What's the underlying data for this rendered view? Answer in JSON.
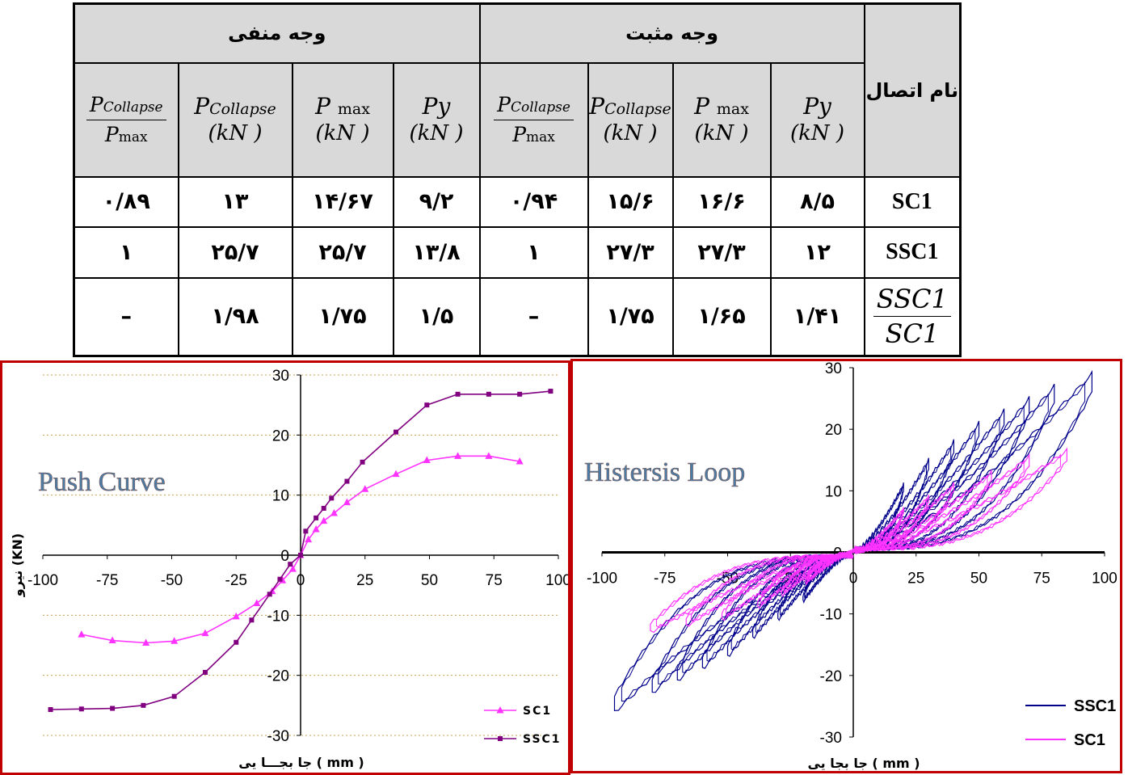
{
  "table": {
    "group_negative": "وجه منفی",
    "group_positive": "وجه مثبت",
    "name_header": "نام اتصال",
    "col_headers": {
      "p": "P",
      "sub_collapse": "Collapse",
      "sub_max": "max",
      "py": "Py",
      "unit": "(kN )"
    },
    "rows": [
      {
        "name": "SC1",
        "neg": [
          "۰/۸۹",
          "۱۳",
          "۱۴/۶۷",
          "۹/۲"
        ],
        "pos": [
          "۰/۹۴",
          "۱۵/۶",
          "۱۶/۶",
          "۸/۵"
        ]
      },
      {
        "name": "SSC1",
        "neg": [
          "۱",
          "۲۵/۷",
          "۲۵/۷",
          "۱۳/۸"
        ],
        "pos": [
          "۱",
          "۲۷/۳",
          "۲۷/۳",
          "۱۲"
        ]
      },
      {
        "name_num": "SSC1",
        "name_den": "SC1",
        "neg": [
          "–",
          "۱/۹۸",
          "۱/۷۵",
          "۱/۵"
        ],
        "pos": [
          "–",
          "۱/۷۵",
          "۱/۶۵",
          "۱/۴۱"
        ]
      }
    ]
  },
  "colors": {
    "sc1_push": "#ff33ff",
    "ssc1_push": "#800080",
    "ssc1_loop": "#00008b",
    "sc1_loop": "#ff33ff",
    "frame": "#c00000",
    "grid": "#c8a050"
  },
  "chart_data": [
    {
      "type": "line",
      "title": "Push Curve",
      "xlabel": "جا بجـــا یی ( mm )",
      "ylabel": "نیرو (KN)",
      "xlim": [
        -100,
        100
      ],
      "ylim": [
        -30,
        30
      ],
      "x_ticks": [
        -100,
        -75,
        -50,
        -25,
        0,
        25,
        50,
        75,
        100
      ],
      "y_ticks": [
        30,
        20,
        10,
        0,
        -10,
        -20,
        -30
      ],
      "grid": "horizontal dotted",
      "legend_position": "bottom-right",
      "series": [
        {
          "name": "SC1",
          "marker": "triangle",
          "points": [
            [
              -85,
              -13.2
            ],
            [
              -73,
              -14.2
            ],
            [
              -60,
              -14.6
            ],
            [
              -49,
              -14.3
            ],
            [
              -37,
              -13
            ],
            [
              -25,
              -10.2
            ],
            [
              -17,
              -8
            ],
            [
              -11,
              -6
            ],
            [
              -7,
              -4.2
            ],
            [
              -3,
              -2.3
            ],
            [
              0,
              0
            ],
            [
              3,
              2.6
            ],
            [
              6,
              4.3
            ],
            [
              9,
              5.7
            ],
            [
              13,
              7
            ],
            [
              18,
              8.8
            ],
            [
              25,
              11
            ],
            [
              37,
              13.5
            ],
            [
              49,
              15.8
            ],
            [
              61,
              16.5
            ],
            [
              73,
              16.5
            ],
            [
              85,
              15.6
            ]
          ]
        },
        {
          "name": "SSC1",
          "marker": "square",
          "points": [
            [
              -97,
              -25.7
            ],
            [
              -85,
              -25.6
            ],
            [
              -73,
              -25.5
            ],
            [
              -61,
              -25
            ],
            [
              -49,
              -23.5
            ],
            [
              -37,
              -19.5
            ],
            [
              -25,
              -14.5
            ],
            [
              -19,
              -10.8
            ],
            [
              -12,
              -6.5
            ],
            [
              -8,
              -4
            ],
            [
              -4,
              -1.5
            ],
            [
              0,
              0
            ],
            [
              2,
              4
            ],
            [
              6,
              6.2
            ],
            [
              9,
              7.8
            ],
            [
              12,
              9.5
            ],
            [
              18,
              12.3
            ],
            [
              24,
              15.5
            ],
            [
              37,
              20.5
            ],
            [
              49,
              25
            ],
            [
              61,
              26.8
            ],
            [
              73,
              26.8
            ],
            [
              85,
              26.8
            ],
            [
              97,
              27.3
            ]
          ]
        }
      ]
    },
    {
      "type": "line",
      "title": "Histersis Loop",
      "xlabel": "جا بجا یی ( mm )",
      "xlim": [
        -100,
        100
      ],
      "ylim": [
        -30,
        30
      ],
      "x_ticks": [
        -100,
        -75,
        -50,
        -25,
        0,
        25,
        50,
        75,
        100
      ],
      "y_ticks": [
        30,
        20,
        10,
        0,
        -10,
        -20,
        -30
      ],
      "legend_position": "bottom-right",
      "series": [
        {
          "name": "SSC1",
          "envelope_amplitudes_mm": [
            20,
            30,
            40,
            50,
            60,
            70,
            80,
            95
          ],
          "peak_force_pos": [
            11,
            15,
            18,
            21,
            23,
            25,
            27,
            29
          ],
          "peak_force_neg": [
            -8,
            -11,
            -14,
            -17,
            -19,
            -21,
            -23,
            -26
          ]
        },
        {
          "name": "SC1",
          "envelope_amplitudes_mm": [
            20,
            30,
            40,
            55,
            70,
            85
          ],
          "peak_force_pos": [
            7,
            9,
            11,
            13,
            15.5,
            16.5
          ],
          "peak_force_neg": [
            -5,
            -7,
            -9,
            -11,
            -12,
            -13
          ]
        }
      ]
    }
  ]
}
